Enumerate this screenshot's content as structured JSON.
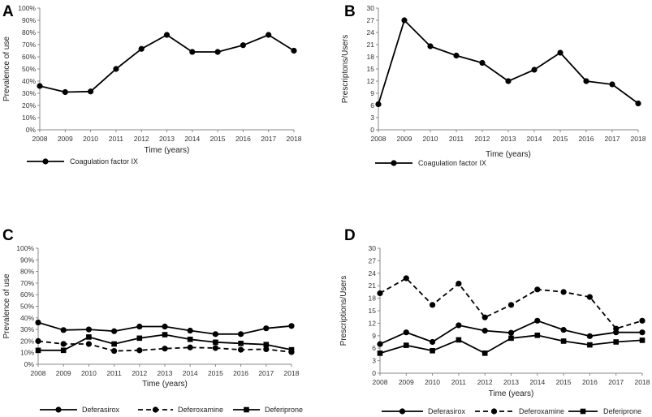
{
  "chart_data": [
    {
      "id": "A",
      "type": "line",
      "panel_label": "A",
      "categories": [
        "2008",
        "2009",
        "2010",
        "2011",
        "2012",
        "2013",
        "2014",
        "2015",
        "2016",
        "2017",
        "2018"
      ],
      "series": [
        {
          "name": "Coagulation factor IX",
          "style": "solid",
          "marker": "circle",
          "values": [
            36,
            31,
            31.5,
            50,
            66.5,
            78,
            64,
            64,
            69.5,
            78,
            65
          ]
        }
      ],
      "ylim": [
        0,
        100
      ],
      "yticks": [
        "0%",
        "10%",
        "20%",
        "30%",
        "40%",
        "50%",
        "60%",
        "70%",
        "80%",
        "90%",
        "100%"
      ],
      "xlabel": "Time (years)",
      "ylabel": "Prevalence of use"
    },
    {
      "id": "B",
      "type": "line",
      "panel_label": "B",
      "categories": [
        "2008",
        "2009",
        "2010",
        "2011",
        "2012",
        "2013",
        "2014",
        "2015",
        "2016",
        "2017",
        "2018"
      ],
      "series": [
        {
          "name": "Coagulation factor IX",
          "style": "solid",
          "marker": "circle",
          "values": [
            6.3,
            27,
            20.6,
            18.3,
            16.5,
            12,
            14.8,
            19,
            12,
            11.2,
            6.5
          ]
        }
      ],
      "ylim": [
        0,
        30
      ],
      "yticks": [
        "0",
        "3",
        "6",
        "9",
        "12",
        "15",
        "18",
        "21",
        "24",
        "27",
        "30"
      ],
      "xlabel": "Time (years)",
      "ylabel": "Prescriptons/Users"
    },
    {
      "id": "C",
      "type": "line",
      "panel_label": "C",
      "categories": [
        "2008",
        "2009",
        "2010",
        "2011",
        "2012",
        "2013",
        "2014",
        "2015",
        "2016",
        "2017",
        "2018"
      ],
      "series": [
        {
          "name": "Deferasirox",
          "style": "solid",
          "marker": "circle",
          "values": [
            36,
            29.5,
            30,
            28.5,
            32.5,
            32.5,
            29,
            26,
            26,
            31,
            33
          ]
        },
        {
          "name": "Deferoxamine",
          "style": "dashed",
          "marker": "circle",
          "values": [
            20,
            17.5,
            17.5,
            11.5,
            12,
            13.5,
            14.5,
            14,
            12.5,
            13,
            10.5
          ]
        },
        {
          "name": "Deferiprone",
          "style": "solid",
          "marker": "square",
          "values": [
            12,
            12,
            23.5,
            17.5,
            22.5,
            25.5,
            21.5,
            19,
            18,
            17,
            12.5
          ]
        }
      ],
      "ylim": [
        0,
        100
      ],
      "yticks": [
        "0%",
        "10%",
        "20%",
        "30%",
        "40%",
        "50%",
        "60%",
        "70%",
        "80%",
        "90%",
        "100%"
      ],
      "xlabel": "Time (years)",
      "ylabel": "Prevalence of use"
    },
    {
      "id": "D",
      "type": "line",
      "panel_label": "D",
      "categories": [
        "2008",
        "2009",
        "2010",
        "2011",
        "2012",
        "2013",
        "2014",
        "2015",
        "2016",
        "2017",
        "2018"
      ],
      "series": [
        {
          "name": "Deferasirox",
          "style": "solid",
          "marker": "circle",
          "values": [
            7,
            9.8,
            7.5,
            11.5,
            10.2,
            9.7,
            12.6,
            10.4,
            8.9,
            9.8,
            9.8
          ]
        },
        {
          "name": "Deferoxamine",
          "style": "dashed",
          "marker": "circle",
          "values": [
            19.2,
            22.8,
            16.4,
            21.5,
            13.4,
            16.4,
            20.1,
            19.5,
            18.3,
            10.7,
            12.6
          ]
        },
        {
          "name": "Deferiprone",
          "style": "solid",
          "marker": "square",
          "values": [
            4.8,
            6.7,
            5.4,
            8,
            4.8,
            8.4,
            9.1,
            7.7,
            6.8,
            7.5,
            7.9
          ]
        }
      ],
      "ylim": [
        0,
        30
      ],
      "yticks": [
        "0",
        "3",
        "6",
        "9",
        "12",
        "15",
        "18",
        "21",
        "24",
        "27",
        "30"
      ],
      "xlabel": "Time (years)",
      "ylabel": "Prescriptions/Users"
    }
  ]
}
